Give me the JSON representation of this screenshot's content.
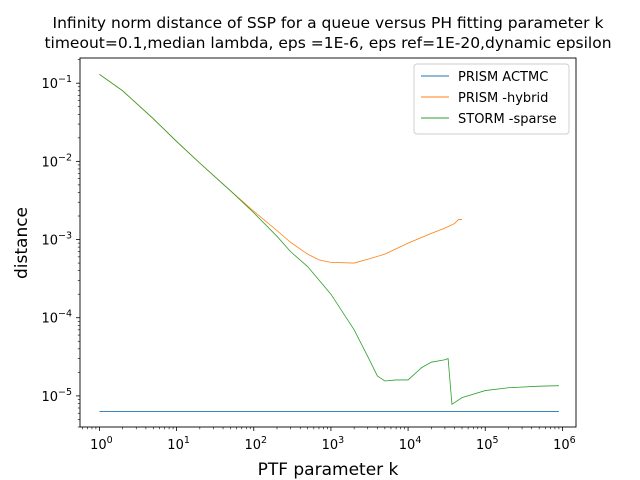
{
  "chart_data": {
    "type": "line",
    "title_lines": [
      "Infinity norm distance of SSP for a queue versus PH fitting parameter k",
      "timeout=0.1,median lambda, eps =1E-6, eps ref=1E-20,dynamic epsilon"
    ],
    "xlabel": "PTF parameter k",
    "ylabel": "distance",
    "x_scale": "log",
    "y_scale": "log",
    "xlim": [
      0.56,
      1500000
    ],
    "ylim": [
      4e-06,
      0.21
    ],
    "x_ticks": [
      {
        "value": 1,
        "base": "10",
        "exp": "0"
      },
      {
        "value": 10,
        "base": "10",
        "exp": "1"
      },
      {
        "value": 100,
        "base": "10",
        "exp": "2"
      },
      {
        "value": 1000,
        "base": "10",
        "exp": "3"
      },
      {
        "value": 10000,
        "base": "10",
        "exp": "4"
      },
      {
        "value": 100000,
        "base": "10",
        "exp": "5"
      },
      {
        "value": 1000000,
        "base": "10",
        "exp": "6"
      }
    ],
    "y_ticks": [
      {
        "value": 1e-05,
        "base": "10",
        "exp": "−5"
      },
      {
        "value": 0.0001,
        "base": "10",
        "exp": "−4"
      },
      {
        "value": 0.001,
        "base": "10",
        "exp": "−3"
      },
      {
        "value": 0.01,
        "base": "10",
        "exp": "−2"
      },
      {
        "value": 0.1,
        "base": "10",
        "exp": "−1"
      }
    ],
    "grid": false,
    "legend_position": "top-right",
    "series": [
      {
        "name": "PRISM ACTMC",
        "color": "#1f77b4",
        "points": [
          [
            1,
            6.3e-06
          ],
          [
            900000,
            6.3e-06
          ]
        ]
      },
      {
        "name": "PRISM -hybrid",
        "color": "#ff7f0e",
        "points": [
          [
            1,
            0.13
          ],
          [
            2,
            0.08
          ],
          [
            5,
            0.035
          ],
          [
            10,
            0.018
          ],
          [
            20,
            0.0095
          ],
          [
            50,
            0.0042
          ],
          [
            100,
            0.0023
          ],
          [
            200,
            0.0013
          ],
          [
            300,
            0.00092
          ],
          [
            500,
            0.00065
          ],
          [
            700,
            0.00055
          ],
          [
            1000,
            0.00051
          ],
          [
            2000,
            0.0005
          ],
          [
            3000,
            0.00056
          ],
          [
            5000,
            0.00065
          ],
          [
            10000,
            0.0009
          ],
          [
            20000,
            0.0012
          ],
          [
            30000,
            0.0014
          ],
          [
            40000,
            0.0016
          ],
          [
            45000,
            0.0018
          ],
          [
            50000,
            0.0018
          ]
        ]
      },
      {
        "name": "STORM -sparse",
        "color": "#2ca02c",
        "points": [
          [
            1,
            0.13
          ],
          [
            2,
            0.08
          ],
          [
            5,
            0.035
          ],
          [
            10,
            0.018
          ],
          [
            20,
            0.0095
          ],
          [
            50,
            0.0042
          ],
          [
            100,
            0.0022
          ],
          [
            200,
            0.0011
          ],
          [
            300,
            0.0007
          ],
          [
            500,
            0.00045
          ],
          [
            1000,
            0.0002
          ],
          [
            2000,
            7e-05
          ],
          [
            3000,
            3.2e-05
          ],
          [
            4000,
            1.8e-05
          ],
          [
            5000,
            1.55e-05
          ],
          [
            7000,
            1.6e-05
          ],
          [
            10000,
            1.6e-05
          ],
          [
            15000,
            2.3e-05
          ],
          [
            20000,
            2.7e-05
          ],
          [
            30000,
            2.9e-05
          ],
          [
            33000,
            3e-05
          ],
          [
            37000,
            7.8e-06
          ],
          [
            50000,
            9.5e-06
          ],
          [
            100000,
            1.17e-05
          ],
          [
            200000,
            1.27e-05
          ],
          [
            500000,
            1.33e-05
          ],
          [
            900000,
            1.35e-05
          ]
        ]
      }
    ]
  }
}
